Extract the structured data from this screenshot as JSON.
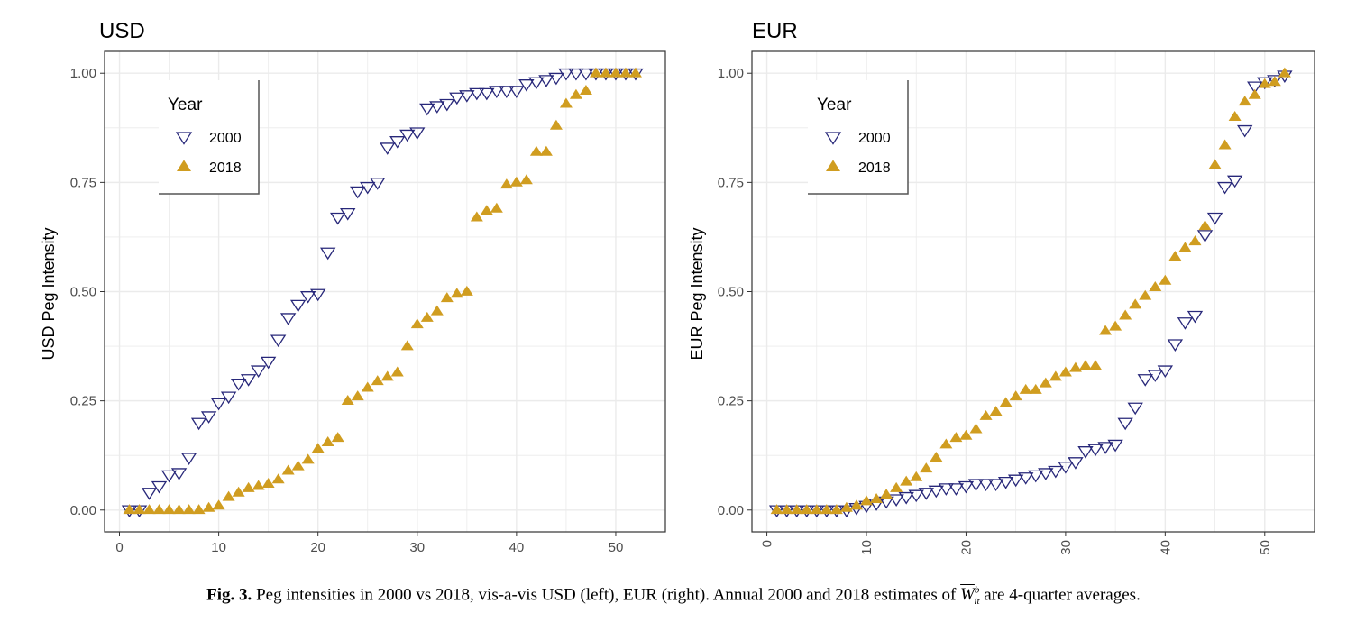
{
  "colors": {
    "series_2000": "#28287a",
    "series_2018": "#d09d20",
    "grid": "#ebebeb",
    "panel_border": "#333333"
  },
  "chart_data": [
    {
      "type": "scatter",
      "title": "USD",
      "ylabel": "USD Peg Intensity",
      "xlabel": "",
      "xlim": [
        -1.5,
        55
      ],
      "ylim": [
        -0.05,
        1.05
      ],
      "x_ticks": [
        0,
        10,
        20,
        30,
        40,
        50
      ],
      "x_tick_labels": [
        "0",
        "10",
        "20",
        "30",
        "40",
        "50"
      ],
      "y_ticks": [
        0,
        0.25,
        0.5,
        0.75,
        1
      ],
      "y_tick_labels": [
        "0.00",
        "0.25",
        "0.50",
        "0.75",
        "1.00"
      ],
      "x_tick_rotation": 0,
      "grid": true,
      "legend": {
        "title": "Year",
        "placement": "top-left"
      },
      "series": [
        {
          "name": "2000",
          "marker": "triangle-down-open",
          "x": [
            1,
            2,
            3,
            4,
            5,
            6,
            7,
            8,
            9,
            10,
            11,
            12,
            13,
            14,
            15,
            16,
            17,
            18,
            19,
            20,
            21,
            22,
            23,
            24,
            25,
            26,
            27,
            28,
            29,
            30,
            31,
            32,
            33,
            34,
            35,
            36,
            37,
            38,
            39,
            40,
            41,
            42,
            43,
            44,
            45,
            46,
            47,
            48,
            49,
            50,
            51,
            52
          ],
          "y": [
            0.0,
            0.0,
            0.04,
            0.055,
            0.08,
            0.085,
            0.12,
            0.2,
            0.215,
            0.245,
            0.26,
            0.29,
            0.3,
            0.32,
            0.34,
            0.39,
            0.44,
            0.47,
            0.49,
            0.495,
            0.59,
            0.67,
            0.68,
            0.73,
            0.74,
            0.75,
            0.83,
            0.845,
            0.86,
            0.865,
            0.92,
            0.925,
            0.93,
            0.945,
            0.95,
            0.955,
            0.955,
            0.96,
            0.96,
            0.96,
            0.975,
            0.98,
            0.985,
            0.99,
            1.0,
            1.0,
            1.0,
            1.0,
            1.0,
            1.0,
            1.0,
            1.0
          ]
        },
        {
          "name": "2018",
          "marker": "triangle-up-filled",
          "x": [
            1,
            2,
            3,
            4,
            5,
            6,
            7,
            8,
            9,
            10,
            11,
            12,
            13,
            14,
            15,
            16,
            17,
            18,
            19,
            20,
            21,
            22,
            23,
            24,
            25,
            26,
            27,
            28,
            29,
            30,
            31,
            32,
            33,
            34,
            35,
            36,
            37,
            38,
            39,
            40,
            41,
            42,
            43,
            44,
            45,
            46,
            47,
            48,
            49,
            50,
            51,
            52
          ],
          "y": [
            0.0,
            0.0,
            0.0,
            0.0,
            0.0,
            0.0,
            0.0,
            0.0,
            0.005,
            0.01,
            0.03,
            0.04,
            0.05,
            0.055,
            0.06,
            0.07,
            0.09,
            0.1,
            0.115,
            0.14,
            0.155,
            0.165,
            0.25,
            0.26,
            0.28,
            0.295,
            0.305,
            0.315,
            0.375,
            0.425,
            0.44,
            0.455,
            0.485,
            0.495,
            0.5,
            0.67,
            0.685,
            0.69,
            0.745,
            0.75,
            0.755,
            0.82,
            0.82,
            0.88,
            0.93,
            0.95,
            0.96,
            1.0,
            1.0,
            1.0,
            1.0,
            1.0
          ]
        }
      ]
    },
    {
      "type": "scatter",
      "title": "EUR",
      "ylabel": "EUR Peg Intensity",
      "xlabel": "",
      "xlim": [
        -1.5,
        55
      ],
      "ylim": [
        -0.05,
        1.05
      ],
      "x_ticks": [
        0,
        10,
        20,
        30,
        40,
        50
      ],
      "x_tick_labels": [
        "0",
        "10",
        "20",
        "30",
        "40",
        "50"
      ],
      "y_ticks": [
        0,
        0.25,
        0.5,
        0.75,
        1
      ],
      "y_tick_labels": [
        "0.00",
        "0.25",
        "0.50",
        "0.75",
        "1.00"
      ],
      "x_tick_rotation": -90,
      "grid": true,
      "legend": {
        "title": "Year",
        "placement": "top-left"
      },
      "series": [
        {
          "name": "2000",
          "marker": "triangle-down-open",
          "x": [
            1,
            2,
            3,
            4,
            5,
            6,
            7,
            8,
            9,
            10,
            11,
            12,
            13,
            14,
            15,
            16,
            17,
            18,
            19,
            20,
            21,
            22,
            23,
            24,
            25,
            26,
            27,
            28,
            29,
            30,
            31,
            32,
            33,
            34,
            35,
            36,
            37,
            38,
            39,
            40,
            41,
            42,
            43,
            44,
            45,
            46,
            47,
            48,
            49,
            50,
            51,
            52
          ],
          "y": [
            0.0,
            0.0,
            0.0,
            0.0,
            0.0,
            0.0,
            0.0,
            0.0,
            0.005,
            0.01,
            0.015,
            0.02,
            0.025,
            0.03,
            0.035,
            0.04,
            0.045,
            0.05,
            0.05,
            0.055,
            0.06,
            0.06,
            0.06,
            0.065,
            0.07,
            0.075,
            0.08,
            0.085,
            0.09,
            0.1,
            0.11,
            0.135,
            0.14,
            0.145,
            0.15,
            0.2,
            0.235,
            0.3,
            0.31,
            0.32,
            0.38,
            0.43,
            0.445,
            0.63,
            0.67,
            0.74,
            0.755,
            0.87,
            0.97,
            0.98,
            0.985,
            0.995
          ]
        },
        {
          "name": "2018",
          "marker": "triangle-up-filled",
          "x": [
            1,
            2,
            3,
            4,
            5,
            6,
            7,
            8,
            9,
            10,
            11,
            12,
            13,
            14,
            15,
            16,
            17,
            18,
            19,
            20,
            21,
            22,
            23,
            24,
            25,
            26,
            27,
            28,
            29,
            30,
            31,
            32,
            33,
            34,
            35,
            36,
            37,
            38,
            39,
            40,
            41,
            42,
            43,
            44,
            45,
            46,
            47,
            48,
            49,
            50,
            51,
            52
          ],
          "y": [
            0.0,
            0.0,
            0.0,
            0.0,
            0.0,
            0.0,
            0.0,
            0.005,
            0.01,
            0.02,
            0.025,
            0.035,
            0.05,
            0.065,
            0.075,
            0.095,
            0.12,
            0.15,
            0.165,
            0.17,
            0.185,
            0.215,
            0.225,
            0.245,
            0.26,
            0.275,
            0.275,
            0.29,
            0.305,
            0.315,
            0.325,
            0.33,
            0.33,
            0.41,
            0.42,
            0.445,
            0.47,
            0.49,
            0.51,
            0.525,
            0.58,
            0.6,
            0.615,
            0.65,
            0.79,
            0.835,
            0.9,
            0.935,
            0.95,
            0.975,
            0.98,
            1.0
          ]
        }
      ]
    }
  ],
  "caption": {
    "label": "Fig. 3.",
    "text_before": "Peg intensities in 2000 vs 2018, vis-a-vis USD (left), EUR (right). Annual 2000 and 2018 estimates of",
    "math_symbol": "W",
    "math_sup": "b",
    "math_sub": "it",
    "text_after": "are 4-quarter averages."
  }
}
